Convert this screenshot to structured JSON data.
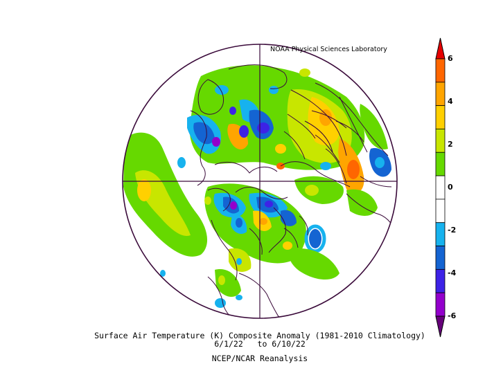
{
  "header": {
    "credit": "NOAA Physical Sciences Laboratory"
  },
  "caption": {
    "title": "Surface Air Temperature (K) Composite Anomaly (1981-2010 Climatology)",
    "dates": "6/1/22   to 6/10/22",
    "source": "NCEP/NCAR Reanalysis"
  },
  "colorbar": {
    "ticks": [
      "6",
      "4",
      "2",
      "0",
      "-2",
      "-4",
      "-6"
    ],
    "colors": [
      "#e60000",
      "#ff6600",
      "#ffa500",
      "#ffd000",
      "#c8e600",
      "#66d900",
      "#ffffff",
      "#ffffff",
      "#17b2ee",
      "#1464d2",
      "#3d22e6",
      "#9300cc",
      "#66007a"
    ]
  },
  "palette": {
    "light_green": "#88e000",
    "green": "#66d900",
    "yellow_green": "#c8e600",
    "yellow": "#ffd000",
    "orange": "#ffa500",
    "dark_orange": "#ff6600",
    "light_blue": "#17b2ee",
    "blue": "#1464d2",
    "indigo": "#3d22e6",
    "purple": "#9300cc",
    "outline": "#3a0a3a"
  }
}
